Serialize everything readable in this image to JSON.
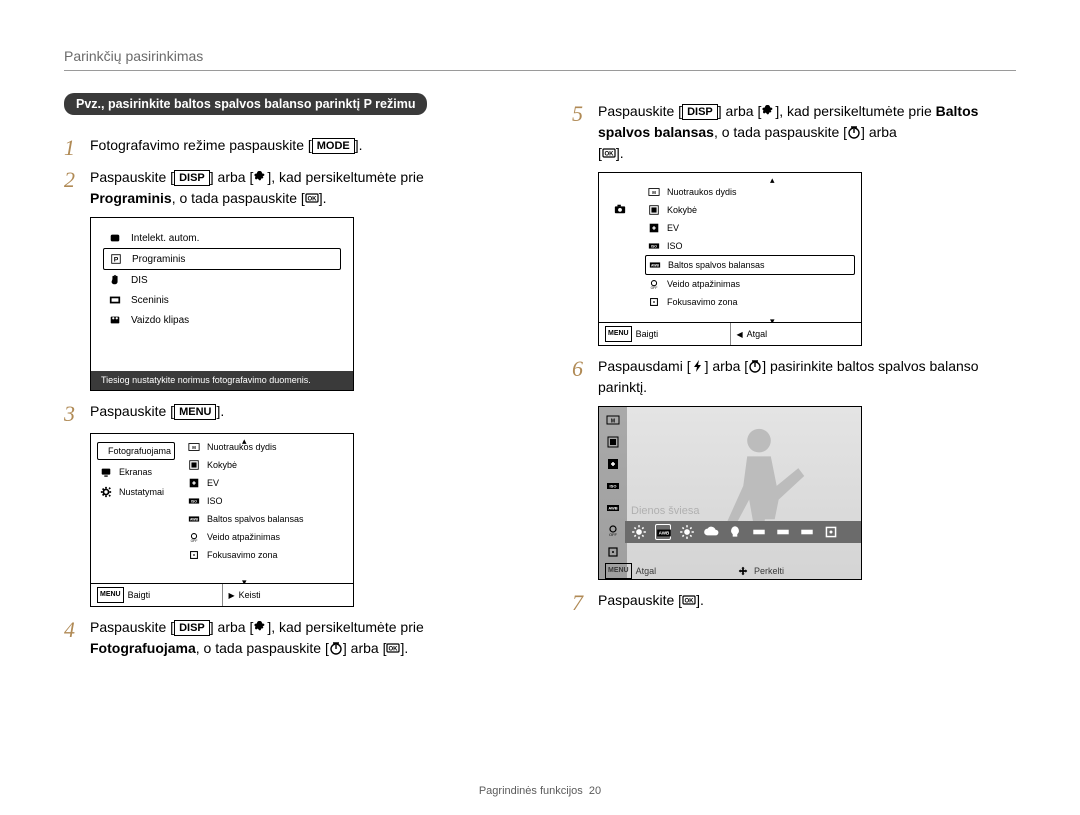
{
  "header": {
    "section_title": "Parinkčių pasirinkimas"
  },
  "pill": "Pvz., pasirinkite baltos spalvos balanso parinktį P režimu",
  "buttons": {
    "mode": "MODE",
    "disp": "DISP",
    "menu": "MENU",
    "ok": "OK"
  },
  "steps": {
    "s1": {
      "num": "1",
      "a": "Fotografavimo režime paspauskite [",
      "b": "]."
    },
    "s2": {
      "num": "2",
      "a": "Paspauskite [",
      "b": "] arba [",
      "c": "], kad persikeltumėte prie ",
      "bold": "Programinis",
      "d": ", o tada paspauskite [",
      "e": "]."
    },
    "s3": {
      "num": "3",
      "a": "Paspauskite [",
      "b": "]."
    },
    "s4": {
      "num": "4",
      "a": "Paspauskite [",
      "b": "] arba [",
      "c": "], kad persikeltumėte prie ",
      "bold": "Fotografuojama",
      "d": ", o tada paspauskite [",
      "e": "] arba [",
      "f": "]."
    },
    "s5": {
      "num": "5",
      "a": "Paspauskite [",
      "b": "] arba [",
      "c": "], kad persikeltumėte prie ",
      "bold": "Baltos spalvos balansas",
      "d": ", o tada paspauskite [",
      "e": "] arba ",
      "f": "[",
      "g": "]."
    },
    "s6": {
      "num": "6",
      "a": "Paspausdami [",
      "b": "] arba [",
      "c": "] pasirinkite baltos spalvos balanso parinktį."
    },
    "s7": {
      "num": "7",
      "a": "Paspauskite [",
      "b": "]."
    }
  },
  "screen1": {
    "rows": [
      {
        "label": "Intelekt. autom."
      },
      {
        "label": "Programinis",
        "selected": true
      },
      {
        "label": "DIS"
      },
      {
        "label": "Sceninis"
      },
      {
        "label": "Vaizdo klipas"
      }
    ],
    "desc": "Tiesiog nustatykite norimus fotografavimo duomenis."
  },
  "screen2": {
    "left": [
      {
        "label": "Fotografuojama",
        "selected": true
      },
      {
        "label": "Ekranas"
      },
      {
        "label": "Nustatymai"
      }
    ],
    "right": [
      {
        "label": "Nuotraukos dydis"
      },
      {
        "label": "Kokybė"
      },
      {
        "label": "EV"
      },
      {
        "label": "ISO"
      },
      {
        "label": "Baltos spalvos balansas"
      },
      {
        "label": "Veido atpažinimas"
      },
      {
        "label": "Fokusavimo zona"
      }
    ],
    "bot_left_btn": "MENU",
    "bot_left": "Baigti",
    "bot_right": "Keisti"
  },
  "screen3": {
    "right": [
      {
        "label": "Nuotraukos dydis"
      },
      {
        "label": "Kokybė"
      },
      {
        "label": "EV"
      },
      {
        "label": "ISO"
      },
      {
        "label": "Baltos spalvos balansas",
        "selected": true
      },
      {
        "label": "Veido atpažinimas"
      },
      {
        "label": "Fokusavimo zona"
      }
    ],
    "bot_left_btn": "MENU",
    "bot_left": "Baigti",
    "bot_right": "Atgal"
  },
  "screen4": {
    "label": "Dienos šviesa",
    "bot_left_btn": "MENU",
    "bot_left": "Atgal",
    "bot_right": "Perkelti",
    "wb_icons": [
      "sun",
      "awb",
      "sun2",
      "cloud",
      "bulb",
      "fluor1",
      "fluor2",
      "fluor3",
      "custom"
    ],
    "selected_index": 1,
    "left_icons": [
      "size",
      "quality",
      "ev",
      "iso",
      "awb",
      "face",
      "focus"
    ]
  },
  "footer": {
    "label": "Pagrindinės funkcijos",
    "page": "20"
  },
  "colors": {
    "num": "#b08a55",
    "pill_bg": "#3a3a3a",
    "rule": "#9a9a9a",
    "s4_bg1": "#e4e4e4",
    "s4_bg2": "#d4d4d4",
    "s4_strip": "#6b6b6b"
  }
}
